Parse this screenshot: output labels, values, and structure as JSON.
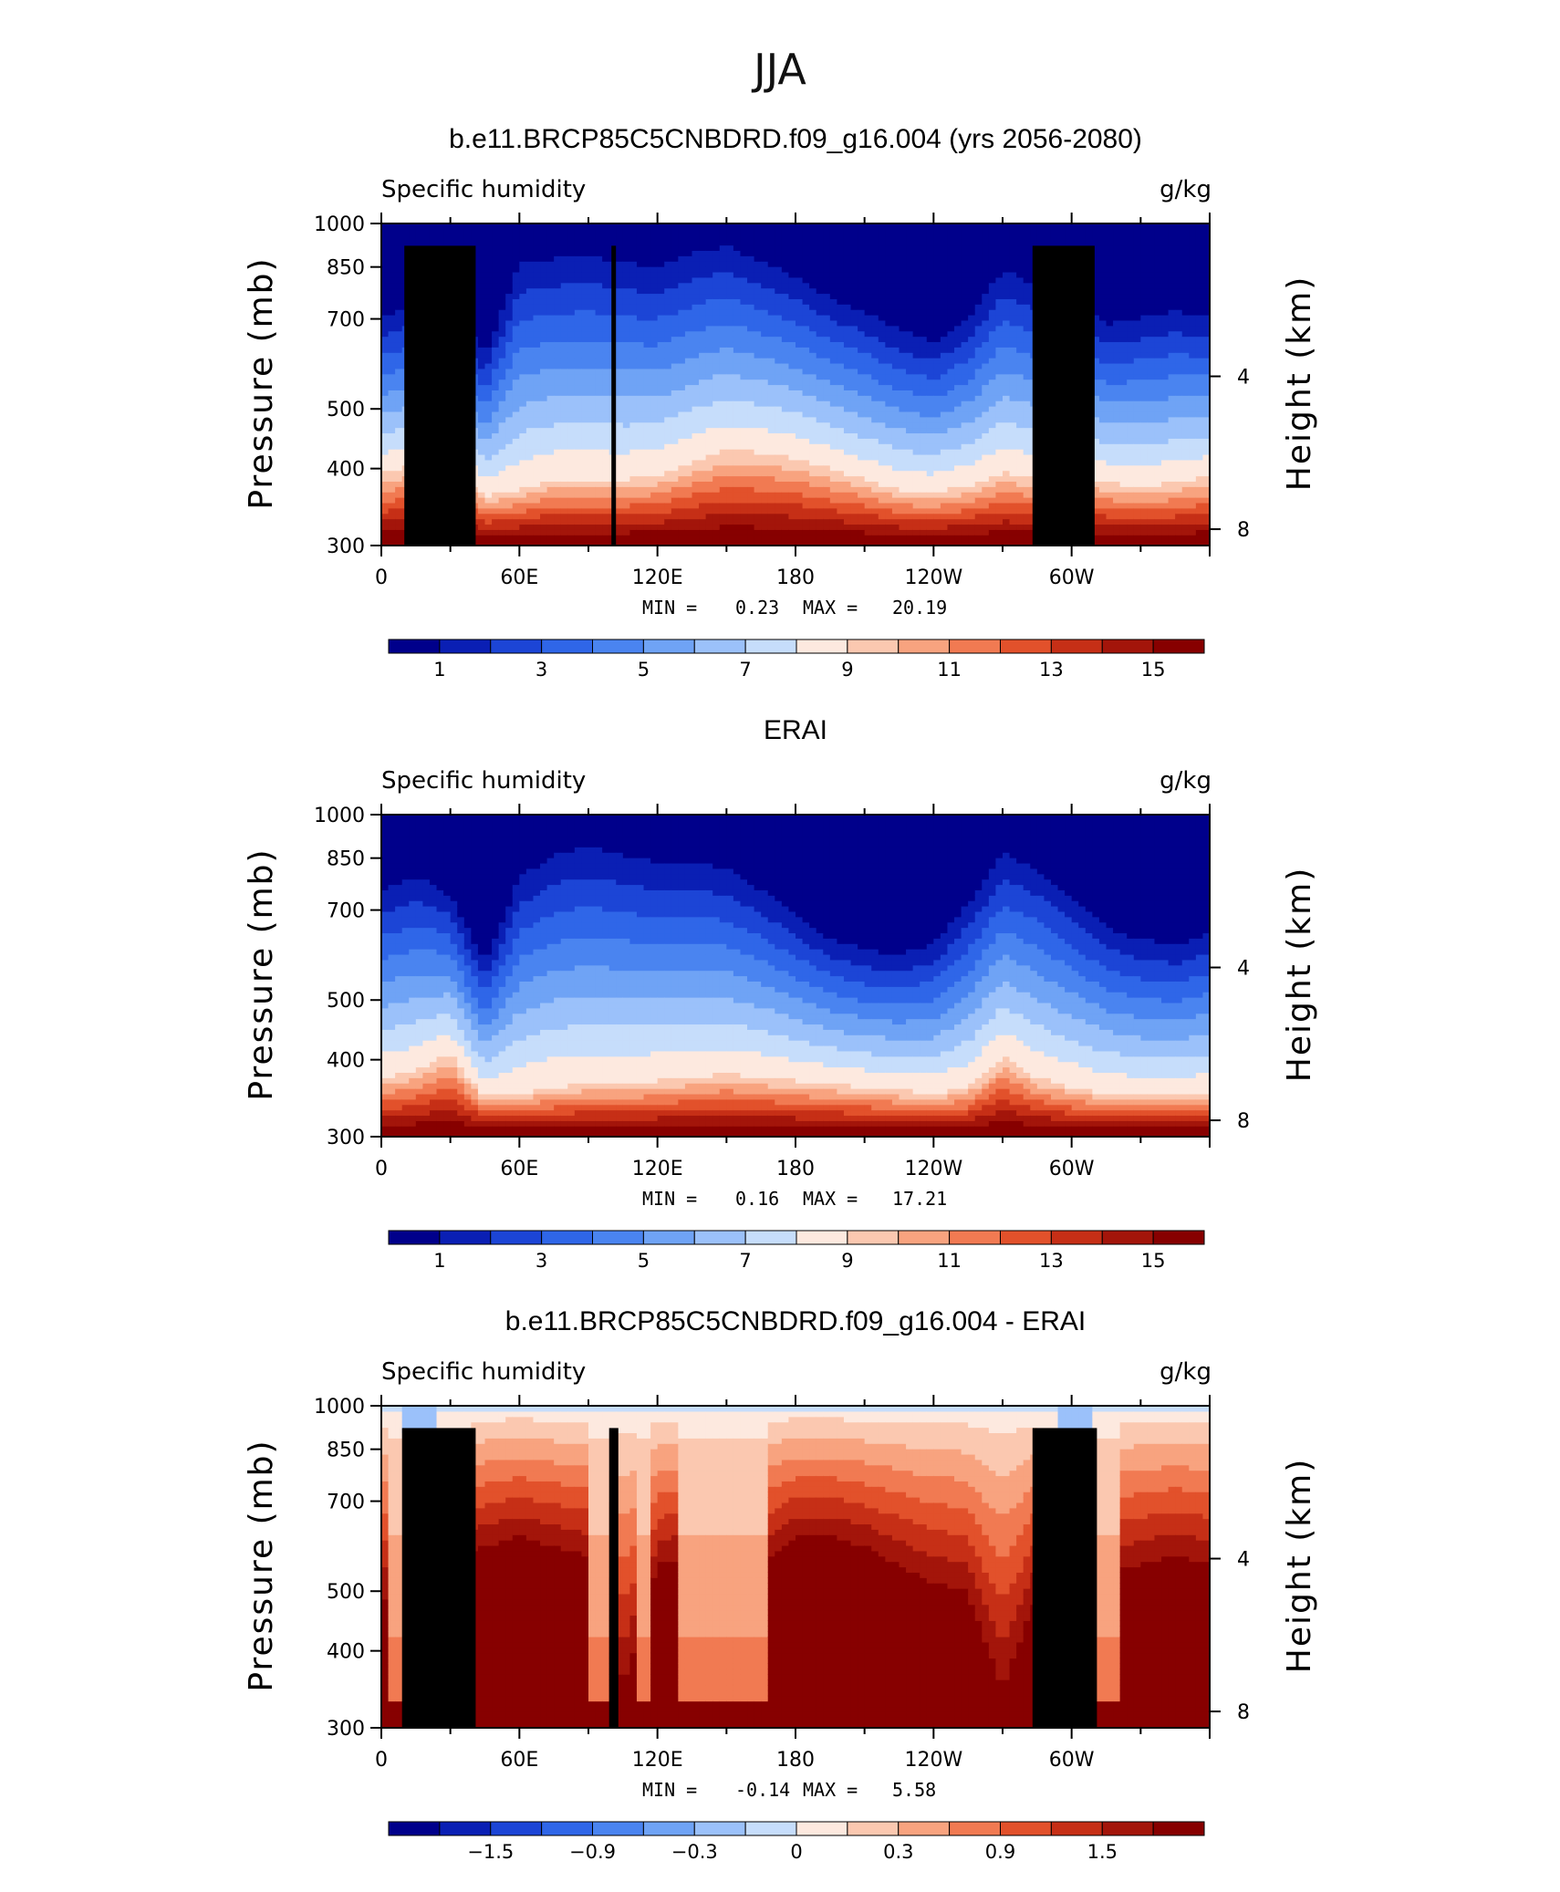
{
  "figure": {
    "title": "JJA",
    "colors": {
      "scale": [
        "#00008b",
        "#0a1fb4",
        "#1c45d6",
        "#2f66e8",
        "#4a84f0",
        "#6fa3f5",
        "#9bc1fa",
        "#c6ddfb",
        "#fde9df",
        "#fbc8b0",
        "#f8a37f",
        "#f17a52",
        "#e2512b",
        "#c62f16",
        "#a3150a",
        "#870000"
      ],
      "land": "#000000"
    }
  },
  "chart_data": [
    {
      "type": "heatmap",
      "title": "b.e11.BRCP85C5CNBDRD.f09_g16.004 (yrs 2056-2080)",
      "subtitle_left": "Specific humidity",
      "subtitle_right": "g/kg",
      "ylabel": "Pressure (mb)",
      "ylabel_right": "Height (km)",
      "x_ticks": [
        "0",
        "60E",
        "120E",
        "180",
        "120W",
        "60W"
      ],
      "x_range_deg_east": [
        0,
        360
      ],
      "y_ticks": [
        "300",
        "400",
        "500",
        "700",
        "850",
        "1000"
      ],
      "y_range_mb": [
        1000,
        300
      ],
      "y_scale": "log",
      "height_ticks": [
        "8",
        "4"
      ],
      "min_label": "MIN =",
      "min_value": "0.23",
      "max_label": "MAX =",
      "max_value": "20.19",
      "colorbar_labels": [
        "1",
        "3",
        "5",
        "7",
        "9",
        "11",
        "13",
        "15"
      ],
      "colorbar_levels": [
        0,
        1,
        2,
        3,
        4,
        5,
        6,
        7,
        8,
        9,
        10,
        11,
        12,
        13,
        14,
        15
      ],
      "field_kind": "humidity",
      "profile": {
        "lon": [
          0,
          15,
          30,
          45,
          60,
          75,
          90,
          105,
          120,
          135,
          150,
          165,
          180,
          195,
          210,
          225,
          240,
          255,
          270,
          285,
          300,
          315,
          330,
          345,
          360
        ],
        "top_p": [
          410,
          390,
          385,
          470,
          330,
          325,
          320,
          330,
          335,
          320,
          310,
          330,
          350,
          380,
          400,
          430,
          450,
          410,
          340,
          360,
          380,
          420,
          410,
          400,
          410
        ],
        "wet_p": [
          760,
          740,
          720,
          830,
          810,
          780,
          780,
          780,
          770,
          730,
          700,
          705,
          720,
          750,
          780,
          810,
          820,
          800,
          760,
          780,
          760,
          790,
          800,
          790,
          770
        ]
      },
      "land_blocks": [
        {
          "lon": [
            10,
            41
          ],
          "p_top": 920
        },
        {
          "lon": [
            28,
            35
          ],
          "p_top": 865
        },
        {
          "lon": [
            100,
            102
          ],
          "p_top": 920
        },
        {
          "lon": [
            283,
            310
          ],
          "p_top": 920
        }
      ]
    },
    {
      "type": "heatmap",
      "title": "ERAI",
      "subtitle_left": "Specific humidity",
      "subtitle_right": "g/kg",
      "ylabel": "Pressure (mb)",
      "ylabel_right": "Height (km)",
      "x_ticks": [
        "0",
        "60E",
        "120E",
        "180",
        "120W",
        "60W"
      ],
      "x_range_deg_east": [
        0,
        360
      ],
      "y_ticks": [
        "300",
        "400",
        "500",
        "700",
        "850",
        "1000"
      ],
      "y_range_mb": [
        1000,
        300
      ],
      "y_scale": "log",
      "height_ticks": [
        "8",
        "4"
      ],
      "min_label": "MIN =",
      "min_value": "0.16",
      "max_label": "MAX =",
      "max_value": "17.21",
      "colorbar_labels": [
        "1",
        "3",
        "5",
        "7",
        "9",
        "11",
        "13",
        "15"
      ],
      "colorbar_levels": [
        0,
        1,
        2,
        3,
        4,
        5,
        6,
        7,
        8,
        9,
        10,
        11,
        12,
        13,
        14,
        15
      ],
      "field_kind": "humidity",
      "profile": {
        "lon": [
          0,
          15,
          30,
          45,
          60,
          75,
          90,
          105,
          120,
          135,
          150,
          165,
          180,
          195,
          210,
          225,
          240,
          255,
          270,
          285,
          300,
          315,
          330,
          345,
          360
        ],
        "top_p": [
          380,
          360,
          390,
          500,
          360,
          330,
          320,
          330,
          340,
          340,
          350,
          380,
          420,
          460,
          480,
          490,
          470,
          400,
          330,
          350,
          390,
          440,
          460,
          470,
          450
        ],
        "wet_p": [
          800,
          780,
          730,
          860,
          850,
          830,
          820,
          820,
          810,
          800,
          790,
          800,
          810,
          820,
          830,
          840,
          850,
          830,
          740,
          800,
          830,
          850,
          860,
          860,
          850
        ]
      },
      "land_blocks": []
    },
    {
      "type": "heatmap",
      "title": "b.e11.BRCP85C5CNBDRD.f09_g16.004 - ERAI",
      "subtitle_left": "Specific humidity",
      "subtitle_right": "g/kg",
      "ylabel": "Pressure (mb)",
      "ylabel_right": "Height (km)",
      "x_ticks": [
        "0",
        "60E",
        "120E",
        "180",
        "120W",
        "60W"
      ],
      "x_range_deg_east": [
        0,
        360
      ],
      "y_ticks": [
        "300",
        "400",
        "500",
        "700",
        "850",
        "1000"
      ],
      "y_range_mb": [
        1000,
        300
      ],
      "y_scale": "log",
      "height_ticks": [
        "8",
        "4"
      ],
      "min_label": "MIN =",
      "min_value": "-0.14",
      "max_label": "MAX =",
      "max_value": "5.58",
      "colorbar_labels": [
        "−1.5",
        "−0.9",
        "−0.3",
        "0",
        "0.3",
        "0.9",
        "1.5"
      ],
      "colorbar_levels": [
        -2.1,
        -1.8,
        -1.5,
        -1.2,
        -0.9,
        -0.6,
        -0.3,
        0,
        0.15,
        0.3,
        0.6,
        0.9,
        1.2,
        1.5,
        1.8,
        2.1
      ],
      "field_kind": "difference",
      "profile": {
        "lon": [
          0,
          15,
          30,
          45,
          60,
          75,
          90,
          105,
          120,
          135,
          150,
          165,
          180,
          195,
          210,
          225,
          240,
          255,
          270,
          285,
          300,
          315,
          330,
          345,
          360
        ],
        "core_p": [
          640,
          600,
          560,
          520,
          500,
          520,
          540,
          900,
          560,
          540,
          560,
          560,
          500,
          500,
          520,
          560,
          600,
          620,
          900,
          620,
          640,
          580,
          560,
          540,
          560
        ],
        "weak_lon": [
          [
            2,
            38
          ],
          [
            90,
            100
          ],
          [
            110,
            118
          ],
          [
            130,
            168
          ],
          [
            285,
            320
          ]
        ]
      },
      "land_blocks": [
        {
          "lon": [
            9,
            41
          ],
          "p_top": 920
        },
        {
          "lon": [
            27,
            36
          ],
          "p_top": 868
        },
        {
          "lon": [
            99,
            103
          ],
          "p_top": 920
        },
        {
          "lon": [
            283,
            311
          ],
          "p_top": 920
        }
      ]
    }
  ]
}
